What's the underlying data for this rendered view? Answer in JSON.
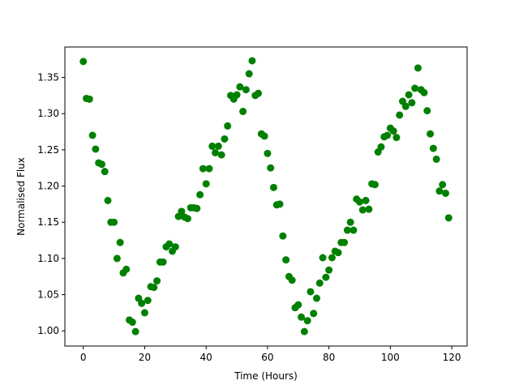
{
  "chart_data": {
    "type": "scatter",
    "title": "",
    "xlabel": "Time (Hours)",
    "ylabel": "Normalised Flux",
    "xlim": [
      -6,
      125
    ],
    "ylim": [
      0.979,
      1.392
    ],
    "xticks": [
      0,
      20,
      40,
      60,
      80,
      100,
      120
    ],
    "yticks": [
      1.0,
      1.05,
      1.1,
      1.15,
      1.2,
      1.25,
      1.3,
      1.35
    ],
    "grid": false,
    "legend": "none",
    "marker_color": "#008000",
    "series": [
      {
        "x": [
          0,
          1,
          2,
          3,
          4,
          5,
          6,
          7,
          8,
          9,
          10,
          11,
          12,
          13,
          14,
          15,
          16,
          17,
          18,
          19,
          20,
          21,
          22,
          23,
          24,
          25,
          26,
          27,
          28,
          29,
          30,
          31,
          32,
          33,
          34,
          35,
          36,
          37,
          38,
          39,
          40,
          41,
          42,
          43,
          44,
          45,
          46,
          47,
          48,
          49,
          50,
          51,
          52,
          53,
          54,
          55,
          56,
          57,
          58,
          59,
          60,
          61,
          62,
          63,
          64,
          65,
          66,
          67,
          68,
          69,
          70,
          71,
          72,
          73,
          74,
          75,
          76,
          77,
          78,
          79,
          80,
          81,
          82,
          83,
          84,
          85,
          86,
          87,
          88,
          89,
          90,
          91,
          92,
          93,
          94,
          95,
          96,
          97,
          98,
          99,
          100,
          101,
          102,
          103,
          104,
          105,
          106,
          107,
          108,
          109,
          110,
          111,
          112,
          113,
          114,
          115,
          116,
          117,
          118,
          119
        ],
        "y": [
          1.372,
          1.321,
          1.32,
          1.27,
          1.251,
          1.232,
          1.23,
          1.22,
          1.18,
          1.15,
          1.15,
          1.1,
          1.122,
          1.08,
          1.085,
          1.015,
          1.012,
          0.999,
          1.045,
          1.038,
          1.025,
          1.042,
          1.061,
          1.06,
          1.069,
          1.095,
          1.095,
          1.116,
          1.12,
          1.11,
          1.116,
          1.158,
          1.165,
          1.157,
          1.155,
          1.17,
          1.17,
          1.169,
          1.188,
          1.224,
          1.203,
          1.224,
          1.255,
          1.246,
          1.255,
          1.243,
          1.265,
          1.283,
          1.325,
          1.32,
          1.326,
          1.337,
          1.303,
          1.333,
          1.355,
          1.373,
          1.325,
          1.328,
          1.272,
          1.269,
          1.245,
          1.225,
          1.198,
          1.174,
          1.175,
          1.131,
          1.098,
          1.075,
          1.07,
          1.032,
          1.036,
          1.019,
          0.999,
          1.014,
          1.054,
          1.024,
          1.045,
          1.066,
          1.101,
          1.074,
          1.084,
          1.101,
          1.11,
          1.108,
          1.122,
          1.122,
          1.139,
          1.15,
          1.139,
          1.182,
          1.178,
          1.167,
          1.18,
          1.168,
          1.203,
          1.202,
          1.247,
          1.254,
          1.268,
          1.27,
          1.28,
          1.276,
          1.267,
          1.298,
          1.317,
          1.31,
          1.326,
          1.315,
          1.335,
          1.363,
          1.333,
          1.329,
          1.304,
          1.272,
          1.252,
          1.237,
          1.193,
          1.202,
          1.19,
          1.156
        ]
      }
    ]
  }
}
